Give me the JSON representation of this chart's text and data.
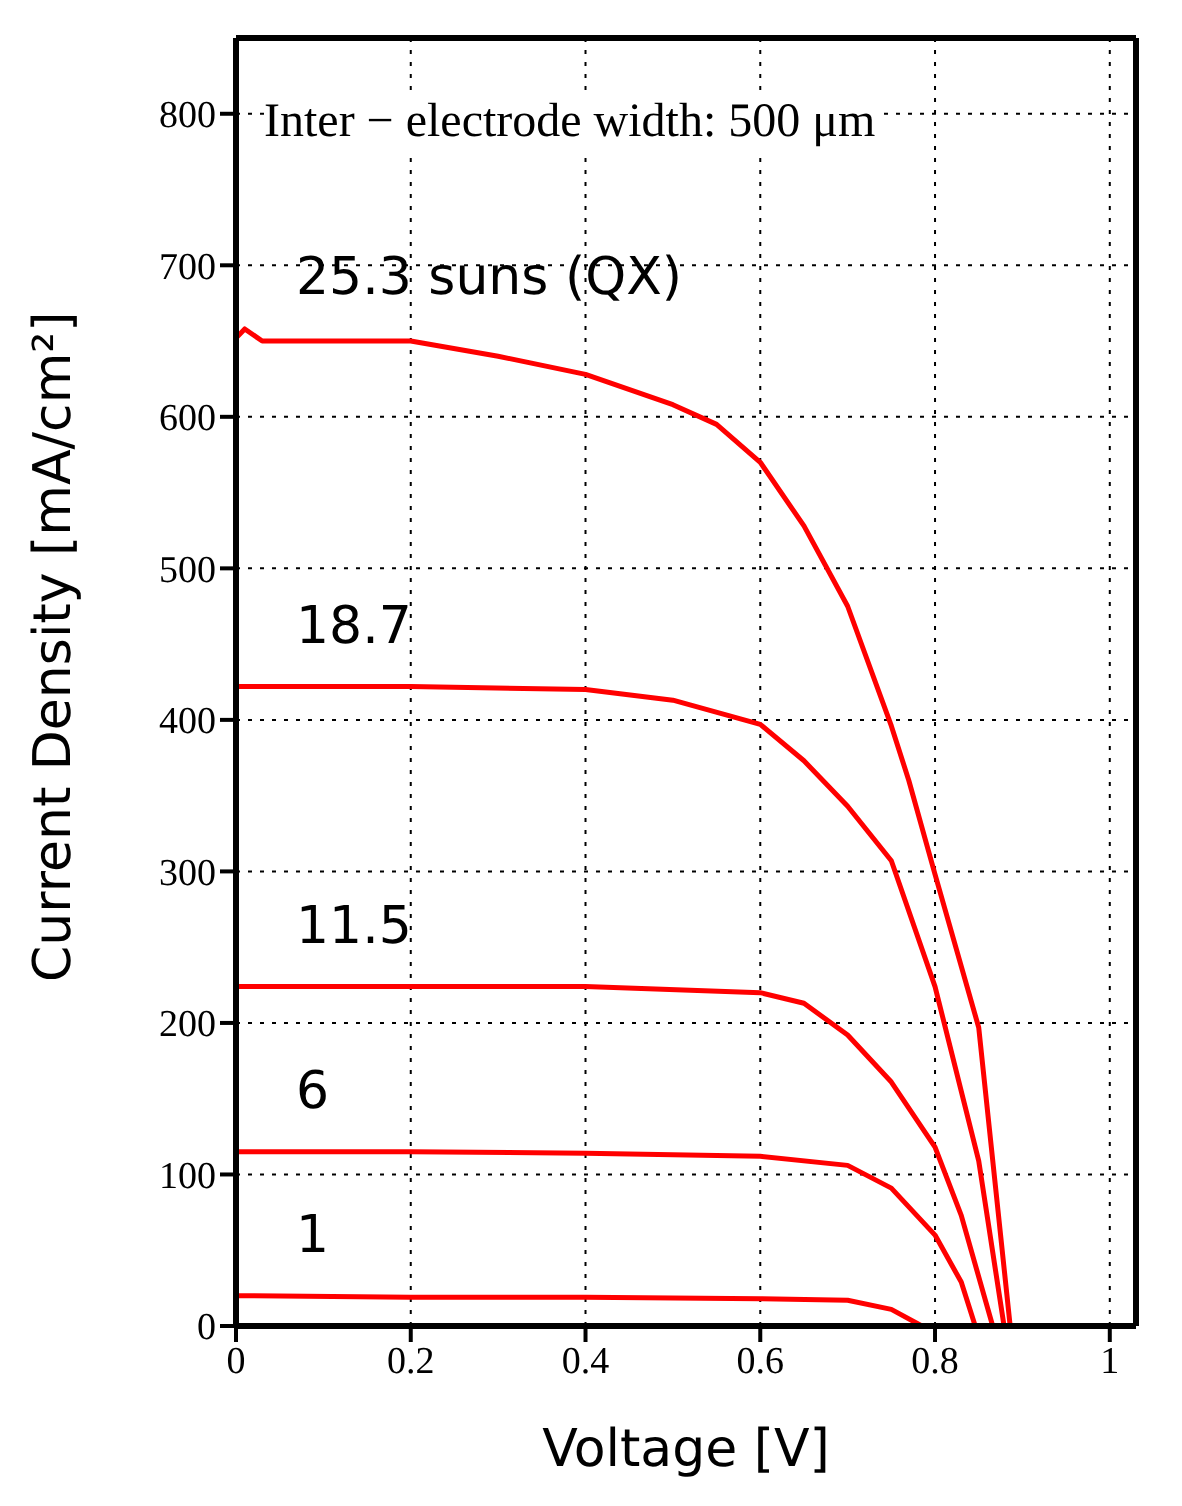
{
  "chart_data": {
    "type": "line",
    "xlabel": "Voltage [V]",
    "ylabel": "Current Density [mA/cm²]",
    "annotations": [
      "Inter − electrode width: 500 μm"
    ],
    "xlim": [
      0,
      1.03
    ],
    "ylim": [
      0,
      850
    ],
    "xticks": [
      0,
      0.2,
      0.4,
      0.6,
      0.8,
      1
    ],
    "yticks": [
      0,
      100,
      200,
      300,
      400,
      500,
      600,
      700,
      800
    ],
    "grid": true,
    "legend": false,
    "marker": "none",
    "line_style": "solid",
    "series": [
      {
        "name": "25.3 suns (QX)",
        "color": "#ff0000",
        "x": [
          0,
          0.01,
          0.03,
          0.2,
          0.3,
          0.4,
          0.5,
          0.55,
          0.6,
          0.65,
          0.7,
          0.75,
          0.77,
          0.8,
          0.85,
          0.886
        ],
        "values": [
          652,
          658,
          650,
          650,
          640,
          628,
          608,
          595,
          570,
          528,
          475,
          396,
          360,
          298,
          197,
          0
        ]
      },
      {
        "name": "18.7",
        "color": "#ff0000",
        "x": [
          0,
          0.2,
          0.4,
          0.5,
          0.6,
          0.65,
          0.7,
          0.75,
          0.8,
          0.85,
          0.879
        ],
        "values": [
          422,
          422,
          420,
          413,
          397,
          373,
          343,
          307,
          224,
          109,
          0
        ]
      },
      {
        "name": "11.5",
        "color": "#ff0000",
        "x": [
          0,
          0.2,
          0.4,
          0.6,
          0.65,
          0.7,
          0.75,
          0.8,
          0.83,
          0.866
        ],
        "values": [
          224,
          224,
          224,
          220,
          213,
          192,
          161,
          118,
          73,
          0
        ]
      },
      {
        "name": "6",
        "color": "#ff0000",
        "x": [
          0,
          0.2,
          0.4,
          0.6,
          0.7,
          0.75,
          0.8,
          0.83,
          0.846
        ],
        "values": [
          115,
          115,
          114,
          112,
          106,
          91,
          60,
          29,
          0
        ]
      },
      {
        "name": "1",
        "color": "#ff0000",
        "x": [
          0,
          0.2,
          0.4,
          0.6,
          0.7,
          0.75,
          0.785
        ],
        "values": [
          20,
          19,
          19,
          18,
          17,
          11,
          0
        ]
      }
    ]
  }
}
